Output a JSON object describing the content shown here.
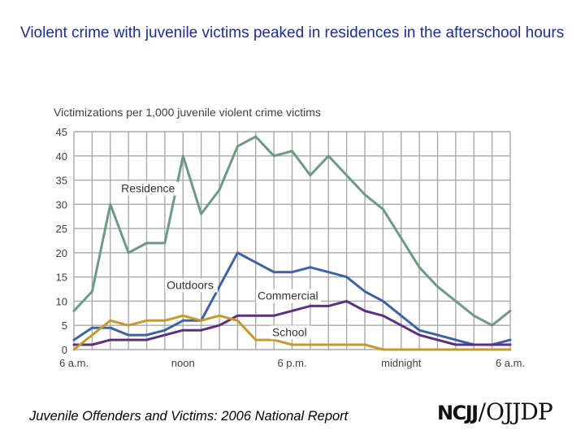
{
  "slide": {
    "title": "Violent crime with juvenile victims peaked in residences in the afterschool hours",
    "footer": "Juvenile Offenders and Victims: 2006 National Report",
    "logo_left": "NCJJ",
    "logo_right": "OJJDP"
  },
  "colors": {
    "title": "#1f2e8c",
    "residence": "#6e9a84",
    "outdoors": "#3f62a3",
    "commercial": "#5e2f80",
    "school": "#c39a2c",
    "grid": "#a9a9a9",
    "text": "#404040"
  },
  "chart_data": {
    "type": "line",
    "title": "Victimizations per 1,000 juvenile violent crime victims",
    "xlabel": "",
    "ylabel": "",
    "ylim": [
      0,
      45
    ],
    "yticks": [
      0,
      5,
      10,
      15,
      20,
      25,
      30,
      35,
      40,
      45
    ],
    "xticks": [
      {
        "index": 0,
        "label": "6 a.m."
      },
      {
        "index": 6,
        "label": "noon"
      },
      {
        "index": 12,
        "label": "6 p.m."
      },
      {
        "index": 18,
        "label": "midnight"
      },
      {
        "index": 24,
        "label": "6 a.m."
      }
    ],
    "x": [
      0,
      1,
      2,
      3,
      4,
      5,
      6,
      7,
      8,
      9,
      10,
      11,
      12,
      13,
      14,
      15,
      16,
      17,
      18,
      19,
      20,
      21,
      22,
      23,
      24
    ],
    "grid": true,
    "legend": "inline labels",
    "series": [
      {
        "name": "Residence",
        "color_key": "residence",
        "values": [
          8,
          12,
          30,
          20,
          22,
          22,
          40,
          28,
          33,
          42,
          44,
          40,
          41,
          36,
          40,
          36,
          32,
          29,
          23,
          17,
          13,
          10,
          7,
          5,
          8
        ]
      },
      {
        "name": "Outdoors",
        "color_key": "outdoors",
        "values": [
          2,
          4.5,
          4.5,
          3,
          3,
          4,
          6,
          6,
          13,
          20,
          18,
          16,
          16,
          17,
          16,
          15,
          12,
          10,
          7,
          4,
          3,
          2,
          1,
          1,
          2
        ]
      },
      {
        "name": "Commercial",
        "color_key": "commercial",
        "values": [
          1,
          1,
          2,
          2,
          2,
          3,
          4,
          4,
          5,
          7,
          7,
          7,
          8,
          9,
          9,
          10,
          8,
          7,
          5,
          3,
          2,
          1,
          1,
          1,
          1
        ]
      },
      {
        "name": "School",
        "color_key": "school",
        "values": [
          0,
          3,
          6,
          5,
          6,
          6,
          7,
          6,
          7,
          6,
          2,
          2,
          1,
          1,
          1,
          1,
          1,
          0,
          0,
          0,
          0,
          0,
          0,
          0,
          0
        ]
      }
    ],
    "series_labels": [
      {
        "text": "Residence",
        "x": 2.6,
        "y": 32.5
      },
      {
        "text": "Outdoors",
        "x": 5.1,
        "y": 12.5
      },
      {
        "text": "Commercial",
        "x": 10.1,
        "y": 10.3
      },
      {
        "text": "School",
        "x": 10.9,
        "y": 2.8
      }
    ]
  }
}
